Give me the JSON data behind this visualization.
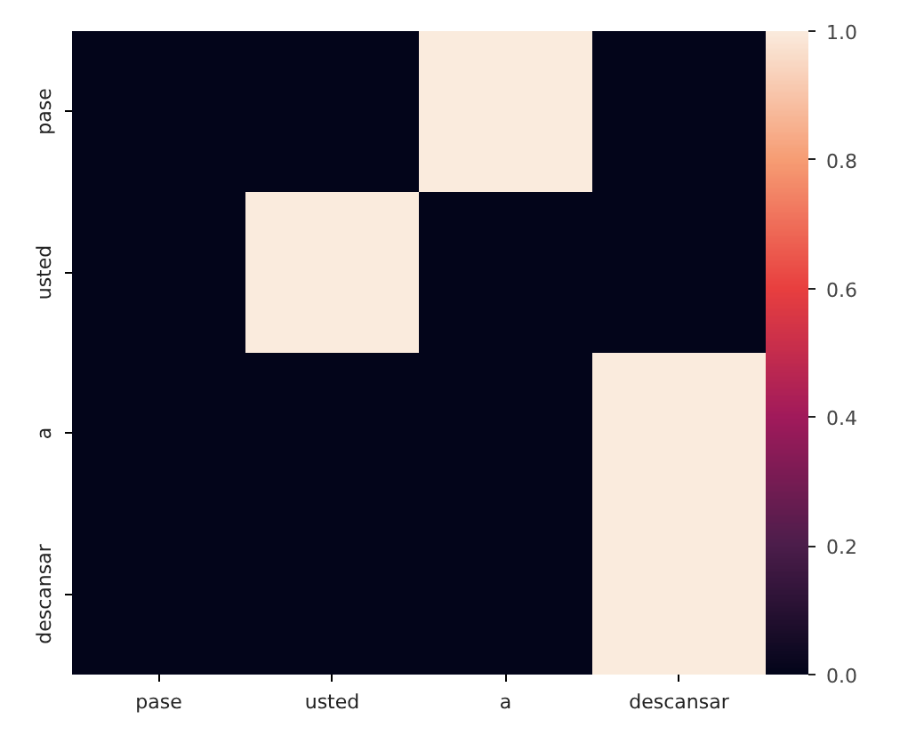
{
  "chart_data": {
    "type": "heatmap",
    "categories": [
      "pase",
      "usted",
      "a",
      "descansar"
    ],
    "y_categories": [
      "pase",
      "usted",
      "a",
      "descansar"
    ],
    "cells": [
      [
        0,
        0,
        1,
        0
      ],
      [
        0,
        1,
        0,
        0
      ],
      [
        0,
        0,
        0,
        1
      ],
      [
        0,
        0,
        0,
        1
      ]
    ],
    "clim": [
      0,
      1
    ],
    "cticks": [
      {
        "value": 0,
        "label": "0.0"
      },
      {
        "value": 0.2,
        "label": "0.2"
      },
      {
        "value": 0.4,
        "label": "0.4"
      },
      {
        "value": 0.6,
        "label": "0.6"
      },
      {
        "value": 0.8,
        "label": "0.8"
      },
      {
        "value": 1,
        "label": "1.0"
      }
    ]
  }
}
